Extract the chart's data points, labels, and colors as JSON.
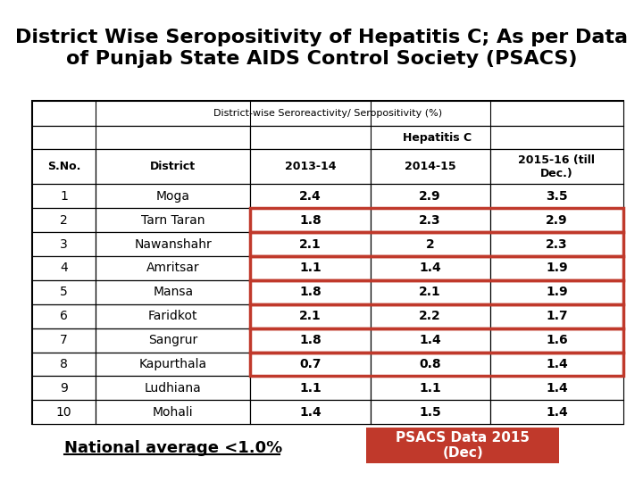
{
  "title_line1": "District Wise Seropositivity of Hepatitis C; As per Data",
  "title_line2": "of Punjab State AIDS Control Society (PSACS)",
  "header_row1": "District-wise Seroreactivity/ Seropositivity (%)",
  "header_row2": "Hepatitis C",
  "col_headers": [
    "S.No.",
    "District",
    "2013-14",
    "2014-15",
    "2015-16 (till\nDec.)"
  ],
  "rows": [
    [
      1,
      "Moga",
      "2.4",
      "2.9",
      "3.5"
    ],
    [
      2,
      "Tarn Taran",
      "1.8",
      "2.3",
      "2.9"
    ],
    [
      3,
      "Nawanshahr",
      "2.1",
      "2",
      "2.3"
    ],
    [
      4,
      "Amritsar",
      "1.1",
      "1.4",
      "1.9"
    ],
    [
      5,
      "Mansa",
      "1.8",
      "2.1",
      "1.9"
    ],
    [
      6,
      "Faridkot",
      "2.1",
      "2.2",
      "1.7"
    ],
    [
      7,
      "Sangrur",
      "1.8",
      "1.4",
      "1.6"
    ],
    [
      8,
      "Kapurthala",
      "0.7",
      "0.8",
      "1.4"
    ],
    [
      9,
      "Ludhiana",
      "1.1",
      "1.1",
      "1.4"
    ],
    [
      10,
      "Mohali",
      "1.4",
      "1.5",
      "1.4"
    ]
  ],
  "highlighted_rows": [
    1,
    2,
    3,
    4,
    5,
    6,
    7
  ],
  "national_avg_text": "National average <1.0%",
  "psacs_box_text": "PSACS Data 2015\n(Dec)",
  "psacs_box_color": "#c0392b",
  "highlight_border_color": "#c0392b",
  "bg_color": "#ffffff",
  "table_border_color": "#000000",
  "title_fontsize": 16,
  "header_fontsize": 9,
  "cell_fontsize": 10
}
